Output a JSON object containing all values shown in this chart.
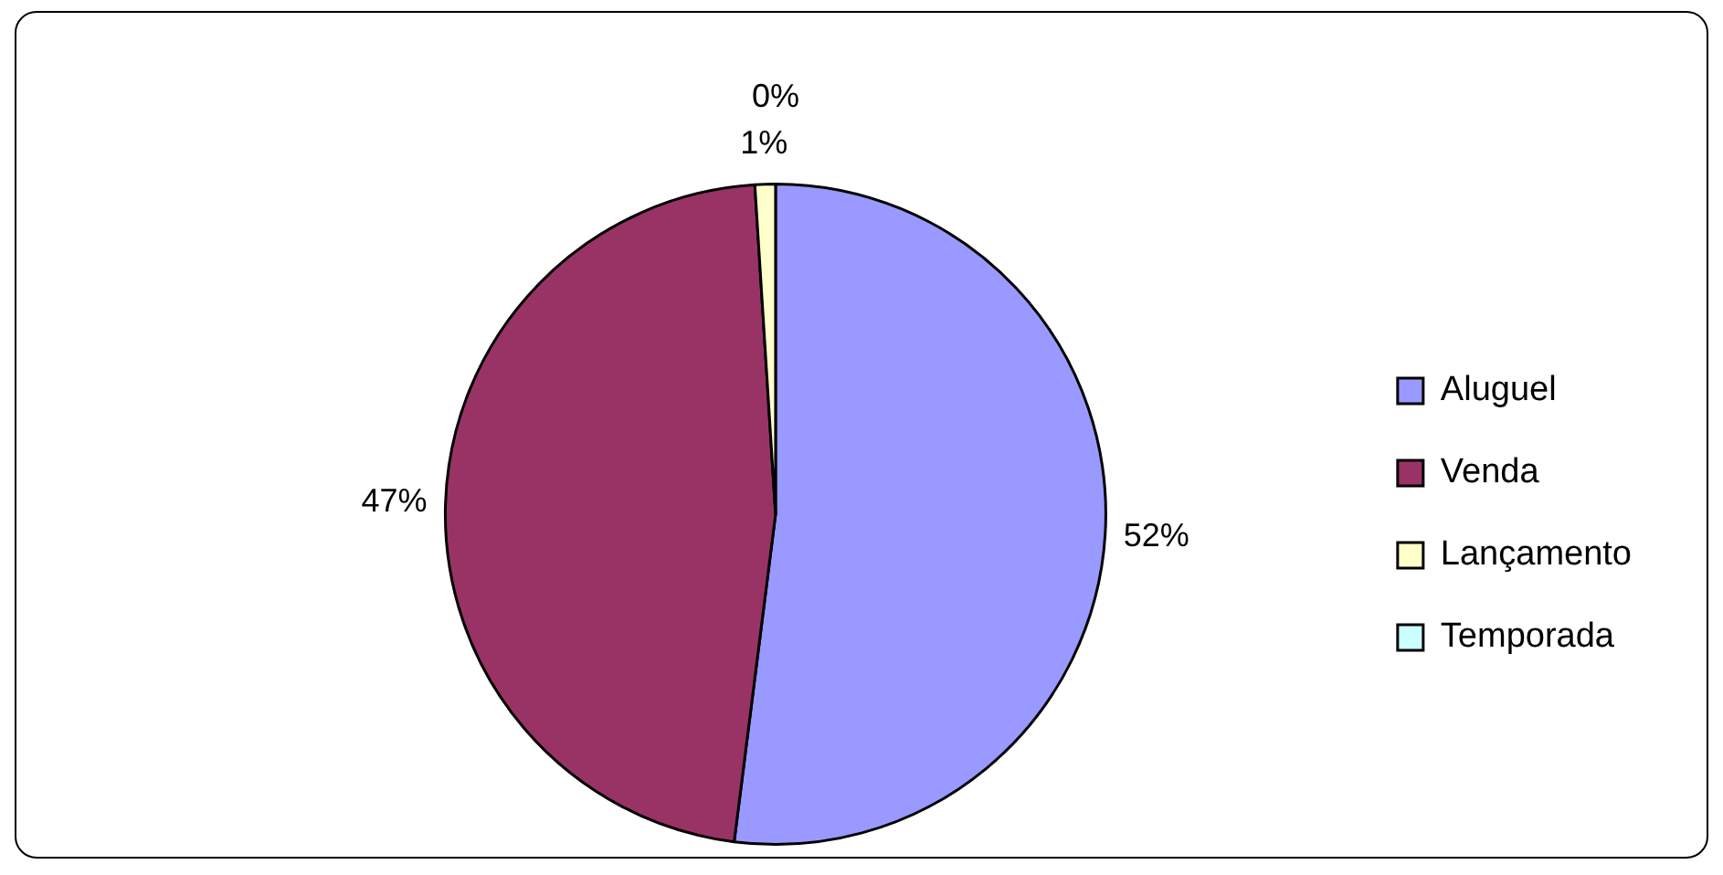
{
  "chart_data": {
    "type": "pie",
    "categories": [
      "Aluguel",
      "Venda",
      "Lançamento",
      "Temporada"
    ],
    "values": [
      52,
      47,
      1,
      0
    ],
    "colors": [
      "#9999ff",
      "#993366",
      "#ffffcc",
      "#ccffff"
    ],
    "value_labels": [
      "52%",
      "47%",
      "1%",
      "0%"
    ],
    "legend": "right"
  }
}
